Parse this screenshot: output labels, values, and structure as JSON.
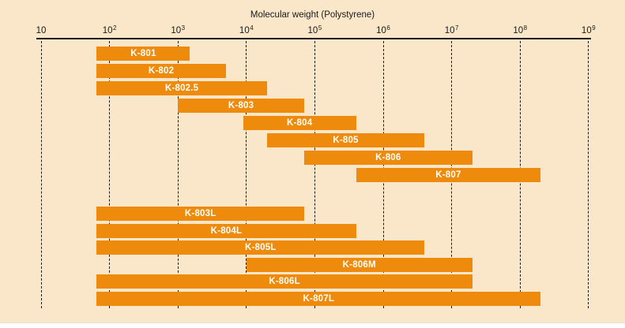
{
  "colors": {
    "bar": "#EE8B0C",
    "panel_background": "#FAE6C8",
    "axis": "#1a1a1a",
    "bar_label": "#ffffff",
    "page_background": "#ffffff"
  },
  "chart_data": {
    "type": "bar",
    "orientation": "horizontal-range",
    "x_scale": "log10",
    "title": "Molecular weight (Polystyrene)",
    "xlabel": "Molecular weight (Polystyrene)",
    "xlim": [
      10,
      1000000000
    ],
    "x_tick_exponents": [
      1,
      2,
      3,
      4,
      5,
      6,
      7,
      8,
      9
    ],
    "x_tick_labels": [
      "10",
      "10²",
      "10³",
      "10⁴",
      "10⁵",
      "10⁶",
      "10⁷",
      "10⁸",
      "10⁹"
    ],
    "grid": "dashed-vertical",
    "legend": "none",
    "rows": [
      {
        "label": "K-801",
        "mw_min": 65,
        "mw_max": 1500,
        "group": "upper"
      },
      {
        "label": "K-802",
        "mw_min": 65,
        "mw_max": 5000,
        "group": "upper"
      },
      {
        "label": "K-802.5",
        "mw_min": 65,
        "mw_max": 20000,
        "group": "upper"
      },
      {
        "label": "K-803",
        "mw_min": 1000,
        "mw_max": 70000,
        "group": "upper"
      },
      {
        "label": "K-804",
        "mw_min": 9000,
        "mw_max": 400000,
        "group": "upper"
      },
      {
        "label": "K-805",
        "mw_min": 20000,
        "mw_max": 4000000,
        "group": "upper"
      },
      {
        "label": "K-806",
        "mw_min": 70000,
        "mw_max": 20000000,
        "group": "upper"
      },
      {
        "label": "K-807",
        "mw_min": 400000,
        "mw_max": 200000000,
        "group": "upper"
      },
      {
        "label": "K-803L",
        "mw_min": 65,
        "mw_max": 70000,
        "group": "lower"
      },
      {
        "label": "K-804L",
        "mw_min": 65,
        "mw_max": 400000,
        "group": "lower"
      },
      {
        "label": "K-805L",
        "mw_min": 65,
        "mw_max": 4000000,
        "group": "lower"
      },
      {
        "label": "K-806M",
        "mw_min": 10000,
        "mw_max": 20000000,
        "group": "lower"
      },
      {
        "label": "K-806L",
        "mw_min": 65,
        "mw_max": 20000000,
        "group": "lower"
      },
      {
        "label": "K-807L",
        "mw_min": 65,
        "mw_max": 200000000,
        "group": "lower"
      }
    ]
  }
}
